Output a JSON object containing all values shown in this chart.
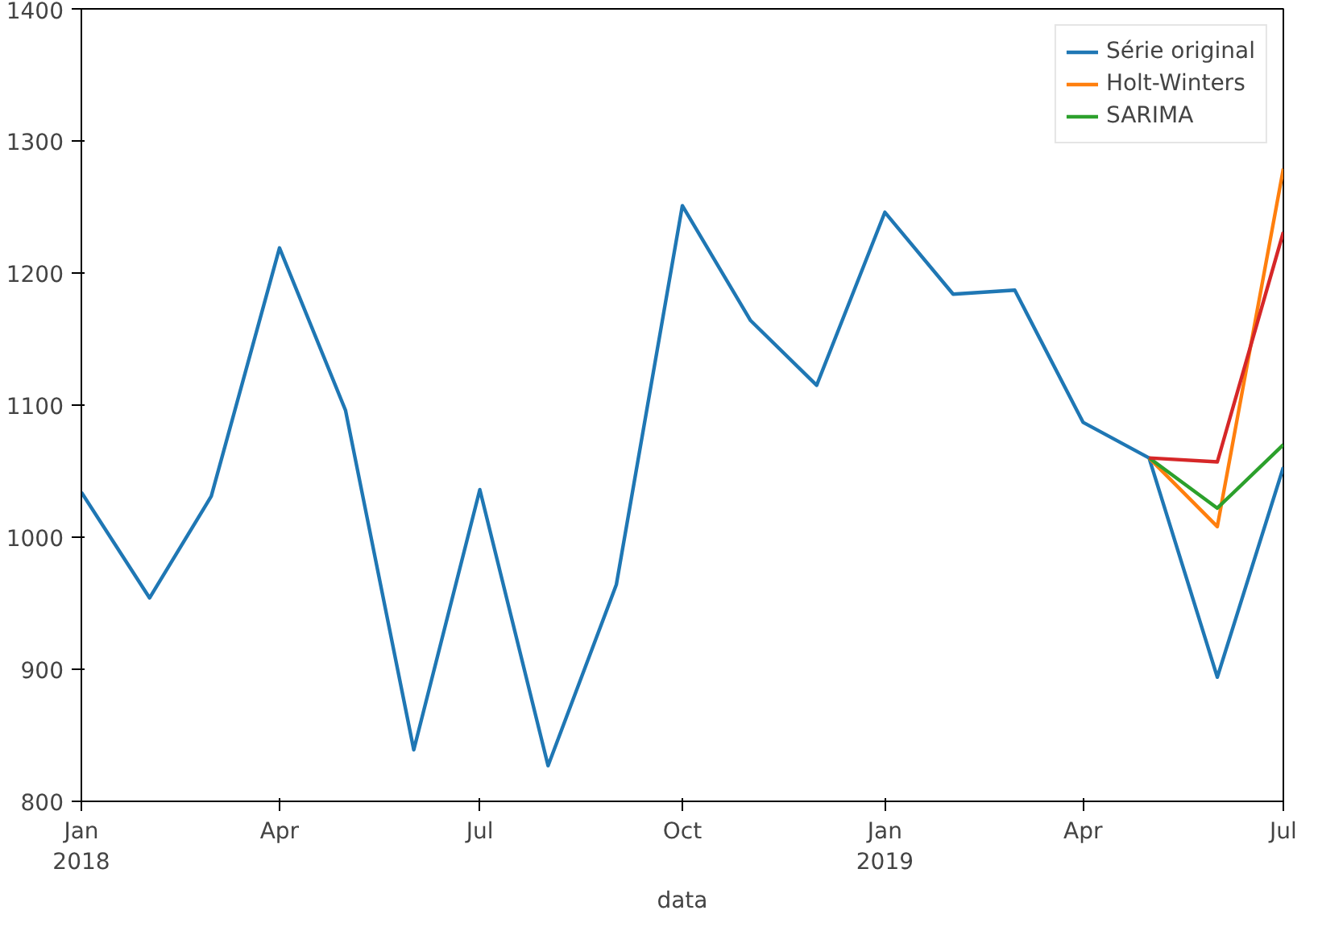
{
  "chart_data": {
    "type": "line",
    "xlabel": "data",
    "x": [
      "2018-01",
      "2018-02",
      "2018-03",
      "2018-04",
      "2018-05",
      "2018-06",
      "2018-07",
      "2018-08",
      "2018-09",
      "2018-10",
      "2018-11",
      "2018-12",
      "2019-01",
      "2019-02",
      "2019-03",
      "2019-04",
      "2019-05",
      "2019-06",
      "2019-07"
    ],
    "series": [
      {
        "name": "Série original",
        "color": "#1f77b4",
        "values": [
          1034,
          954,
          1031,
          1219,
          1096,
          839,
          1036,
          827,
          964,
          1251,
          1164,
          1115,
          1246,
          1184,
          1187,
          1087,
          1060,
          894,
          1053
        ]
      },
      {
        "name": "Holt-Winters",
        "color": "#ff7f0e",
        "x": [
          "2019-05",
          "2019-06",
          "2019-07"
        ],
        "values": [
          1060,
          1008,
          1279
        ]
      },
      {
        "name": "SARIMA",
        "color": "#2ca02c",
        "x": [
          "2019-05",
          "2019-06",
          "2019-07"
        ],
        "values": [
          1060,
          1022,
          1070
        ]
      },
      {
        "color": "#d62728",
        "x": [
          "2019-05",
          "2019-06",
          "2019-07"
        ],
        "values": [
          1060,
          1057,
          1231
        ]
      }
    ],
    "xlim": [
      "2018-01",
      "2019-07"
    ],
    "xticks": [
      {
        "value": "2018-01",
        "label": "Jan\n2018"
      },
      {
        "value": "2018-04",
        "label": "Apr"
      },
      {
        "value": "2018-07",
        "label": "Jul"
      },
      {
        "value": "2018-10",
        "label": "Oct"
      },
      {
        "value": "2019-01",
        "label": "Jan\n2019"
      },
      {
        "value": "2019-04",
        "label": "Apr"
      },
      {
        "value": "2019-07",
        "label": "Jul"
      }
    ],
    "ylim": [
      800,
      1400
    ],
    "yticks": [
      800,
      900,
      1000,
      1100,
      1200,
      1300,
      1400
    ],
    "grid": false,
    "legend": "top right"
  }
}
